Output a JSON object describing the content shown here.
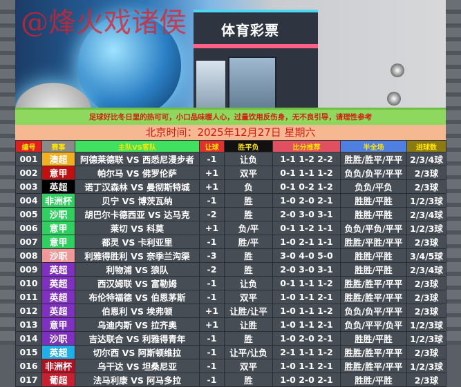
{
  "watermark": "@烽火戏诸侯",
  "store_sign": "体育彩票",
  "notice": "足球好比冬日里的热可可，小口品味暖人心，过量饮用反伤身，无不良引导，请理性参考",
  "date_line": "北京时间：2025年12月27日  星期六",
  "headers": [
    {
      "label": "编号",
      "color": "#e02020"
    },
    {
      "label": "赛事",
      "color": "#8a8a8a"
    },
    {
      "label": "主队VS客队",
      "color": "#40e060"
    },
    {
      "label": "让球",
      "color": "#e03030"
    },
    {
      "label": "胜平负",
      "color": "#111111"
    },
    {
      "label": "比分推荐",
      "color": "#e05060"
    },
    {
      "label": "半全场",
      "color": "#4f7fe0"
    },
    {
      "label": "进球数",
      "color": "#8a7a10"
    }
  ],
  "rows": [
    {
      "no": "001",
      "league": "澳超",
      "league_color": "#f0b020",
      "match": "阿德莱德联 VS 西悉尼漫步者",
      "handicap": "-1",
      "result": "让负",
      "scores": "1-1 1-2 2-2",
      "half_full": "胜胜/胜平/平平",
      "goals": "2/3/4球"
    },
    {
      "no": "002",
      "league": "意甲",
      "league_color": "#c01010",
      "match": "帕尔马 VS 佛罗伦萨",
      "handicap": "+1",
      "result": "双平",
      "scores": "0-1 1-1 1-2",
      "half_full": "负负/负平/平平",
      "goals": "2/3球"
    },
    {
      "no": "003",
      "league": "英超",
      "league_color": "#000000",
      "match": "诺丁汉森林 VS 曼彻斯特城",
      "handicap": "+1",
      "result": "负",
      "scores": "0-1 0-2 1-2",
      "half_full": "负负/平负",
      "goals": "2/3球"
    },
    {
      "no": "004",
      "league": "非洲杯",
      "league_color": "#30d060",
      "match": "贝宁 VS 博茨瓦纳",
      "handicap": "-1",
      "result": "胜",
      "scores": "1-0 2-0 2-1",
      "half_full": "胜胜/平胜",
      "goals": "1/2/3球"
    },
    {
      "no": "005",
      "league": "沙职",
      "league_color": "#30d060",
      "match": "胡巴尔卡德西亚 VS 达马克",
      "handicap": "-2",
      "result": "胜",
      "scores": "2-0 3-0 3-1",
      "half_full": "胜胜/平胜",
      "goals": "2/3/4球"
    },
    {
      "no": "006",
      "league": "意甲",
      "league_color": "#30d060",
      "match": "莱切 VS 科莫",
      "handicap": "+1",
      "result": "负/平",
      "scores": "0-1 1-2 1-1",
      "half_full": "负负/平负/平平",
      "goals": "1/2/3球"
    },
    {
      "no": "007",
      "league": "意甲",
      "league_color": "#30d060",
      "match": "都灵 VS 卡利亚里",
      "handicap": "-1",
      "result": "胜/平",
      "scores": "1-0 2-1 1-1",
      "half_full": "胜胜/平胜/平平",
      "goals": "2/3球"
    },
    {
      "no": "008",
      "league": "沙职",
      "league_color": "#f09898",
      "match": "利雅得胜利 VS 奈季兰沟渠",
      "handicap": "-3",
      "result": "胜",
      "scores": "3-0 4-0 5-0",
      "half_full": "胜胜/平胜",
      "goals": "3/4/5球"
    },
    {
      "no": "009",
      "league": "英超",
      "league_color": "#8030c0",
      "match": "利物浦 VS 狼队",
      "handicap": "-2",
      "result": "胜",
      "scores": "2-0 3-0 3-1",
      "half_full": "胜胜/平胜",
      "goals": "2/3/4球"
    },
    {
      "no": "010",
      "league": "英超",
      "league_color": "#8030c0",
      "match": "西汉姆联 VS 富勒姆",
      "handicap": "-1",
      "result": "让负",
      "scores": "0-1 1-1 1-2",
      "half_full": "胜胜/胜平/平平",
      "goals": "2/3球"
    },
    {
      "no": "011",
      "league": "英超",
      "league_color": "#8030c0",
      "match": "布伦特福德 VS 伯恩茅斯",
      "handicap": "-1",
      "result": "双平",
      "scores": "1-0 1-1 2-1",
      "half_full": "胜胜/胜平/平平",
      "goals": "2/3球"
    },
    {
      "no": "012",
      "league": "英超",
      "league_color": "#8030c0",
      "match": "伯恩利 VS 埃弗顿",
      "handicap": "+1",
      "result": "让胜/让平",
      "scores": "1-0 1-1 1-2",
      "half_full": "负负/负平/平平",
      "goals": "2/3球"
    },
    {
      "no": "013",
      "league": "意甲",
      "league_color": "#8030c0",
      "match": "乌迪内斯 VS 拉齐奥",
      "handicap": "+1",
      "result": "让胜",
      "scores": "1-0 1-1 2-1",
      "half_full": "负负/平平/负平",
      "goals": "1/2/3球"
    },
    {
      "no": "014",
      "league": "沙职",
      "league_color": "#8030c0",
      "match": "吉达联合 VS 利雅得青年",
      "handicap": "-1",
      "result": "胜",
      "scores": "1-0 2-0 2-1",
      "half_full": "胜胜/平胜",
      "goals": "1/2/3球"
    },
    {
      "no": "015",
      "league": "英超",
      "league_color": "#20b0e8",
      "match": "切尔西 VS 阿斯顿维拉",
      "handicap": "-1",
      "result": "让平/让负",
      "scores": "2-1 1-1 1-2",
      "half_full": "胜胜/胜平/平平",
      "goals": "2/3球"
    },
    {
      "no": "016",
      "league": "非洲杯",
      "league_color": "#b01020",
      "match": "乌干达 VS 坦桑尼亚",
      "handicap": "-1",
      "result": "双平",
      "scores": "1-0 1-1 2-1",
      "half_full": "胜胜/胜平/平平",
      "goals": "1/2/3球"
    },
    {
      "no": "017",
      "league": "葡超",
      "league_color": "#c82030",
      "match": "法马利康 VS 阿马多拉",
      "handicap": "-1",
      "result": "胜",
      "scores": "1-0 2-0 2-1",
      "half_full": "胜胜/平胜",
      "goals": "2/3球"
    }
  ]
}
